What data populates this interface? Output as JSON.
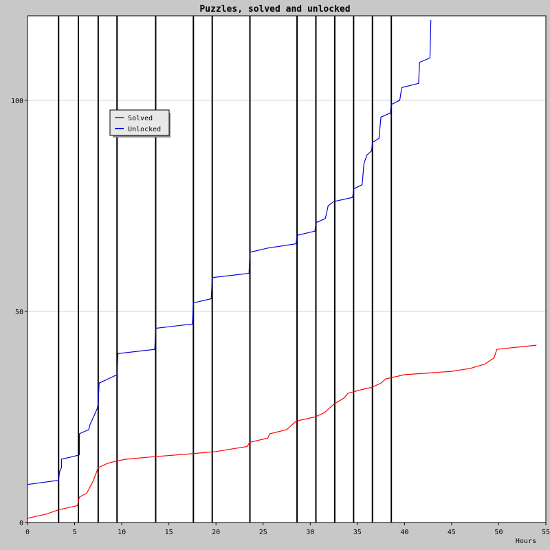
{
  "chart_data": {
    "type": "line",
    "title": "Puzzles, solved and unlocked",
    "xlabel": "Hours",
    "ylabel": "",
    "xlim": [
      0,
      55
    ],
    "ylim": [
      0,
      120
    ],
    "xticks": [
      0,
      5,
      10,
      15,
      20,
      25,
      30,
      35,
      40,
      45,
      50,
      55
    ],
    "yticks": [
      0,
      50,
      100
    ],
    "grid": {
      "horizontal": true,
      "vertical": false
    },
    "legend_position": "upper-left",
    "vertical_markers": [
      3.3,
      5.4,
      7.5,
      9.5,
      13.6,
      17.6,
      19.6,
      23.6,
      28.6,
      30.6,
      32.6,
      34.6,
      36.6,
      38.6
    ],
    "series": [
      {
        "name": "Solved",
        "color": "#ff0000",
        "points": [
          [
            0,
            1
          ],
          [
            2,
            2
          ],
          [
            3.3,
            3
          ],
          [
            5.3,
            4
          ],
          [
            5.5,
            6
          ],
          [
            6.3,
            7
          ],
          [
            7,
            10
          ],
          [
            7.5,
            13
          ],
          [
            8.5,
            14
          ],
          [
            9.5,
            14.6
          ],
          [
            10.5,
            15
          ],
          [
            13.5,
            15.6
          ],
          [
            17.5,
            16.3
          ],
          [
            20,
            16.8
          ],
          [
            23.3,
            18
          ],
          [
            23.6,
            19
          ],
          [
            25.5,
            20
          ],
          [
            25.7,
            21
          ],
          [
            27.5,
            22
          ],
          [
            28,
            23
          ],
          [
            28.5,
            24
          ],
          [
            30.5,
            25
          ],
          [
            31.5,
            26
          ],
          [
            32.5,
            28
          ],
          [
            33.6,
            29.5
          ],
          [
            34,
            30.6
          ],
          [
            35.5,
            31.5
          ],
          [
            36.5,
            32
          ],
          [
            37.5,
            33
          ],
          [
            38,
            34
          ],
          [
            40,
            35
          ],
          [
            42.5,
            35.4
          ],
          [
            45,
            35.8
          ],
          [
            47,
            36.5
          ],
          [
            48.5,
            37.5
          ],
          [
            49.5,
            39
          ],
          [
            49.8,
            41
          ],
          [
            51,
            41.3
          ],
          [
            54,
            42
          ]
        ]
      },
      {
        "name": "Unlocked",
        "color": "#0000dd",
        "points": [
          [
            0,
            9
          ],
          [
            3.3,
            10
          ],
          [
            3.4,
            12
          ],
          [
            3.6,
            13
          ],
          [
            3.6,
            15
          ],
          [
            4.6,
            15.5
          ],
          [
            5.5,
            16
          ],
          [
            5.5,
            21
          ],
          [
            6.5,
            22
          ],
          [
            6.6,
            23
          ],
          [
            7,
            25
          ],
          [
            7.4,
            27
          ],
          [
            7.5,
            28
          ],
          [
            7.6,
            33
          ],
          [
            9.5,
            35
          ],
          [
            9.6,
            40
          ],
          [
            13.5,
            41
          ],
          [
            13.6,
            46
          ],
          [
            17.5,
            47
          ],
          [
            17.6,
            52
          ],
          [
            19.5,
            53
          ],
          [
            19.6,
            58
          ],
          [
            23.5,
            59
          ],
          [
            23.6,
            64
          ],
          [
            25.5,
            65
          ],
          [
            28.5,
            66
          ],
          [
            28.6,
            68
          ],
          [
            30.5,
            69
          ],
          [
            30.6,
            71
          ],
          [
            31.6,
            72
          ],
          [
            31.7,
            73
          ],
          [
            31.9,
            75
          ],
          [
            32.5,
            76
          ],
          [
            34.5,
            77
          ],
          [
            34.6,
            79
          ],
          [
            35.5,
            80
          ],
          [
            35.7,
            85
          ],
          [
            36,
            87
          ],
          [
            36.5,
            88
          ],
          [
            36.6,
            90
          ],
          [
            37.3,
            91
          ],
          [
            37.5,
            96
          ],
          [
            38.5,
            97
          ],
          [
            38.6,
            99
          ],
          [
            39.5,
            100
          ],
          [
            39.7,
            103
          ],
          [
            41.5,
            104
          ],
          [
            41.6,
            109
          ],
          [
            42.7,
            110
          ],
          [
            42.8,
            119
          ]
        ]
      }
    ]
  }
}
